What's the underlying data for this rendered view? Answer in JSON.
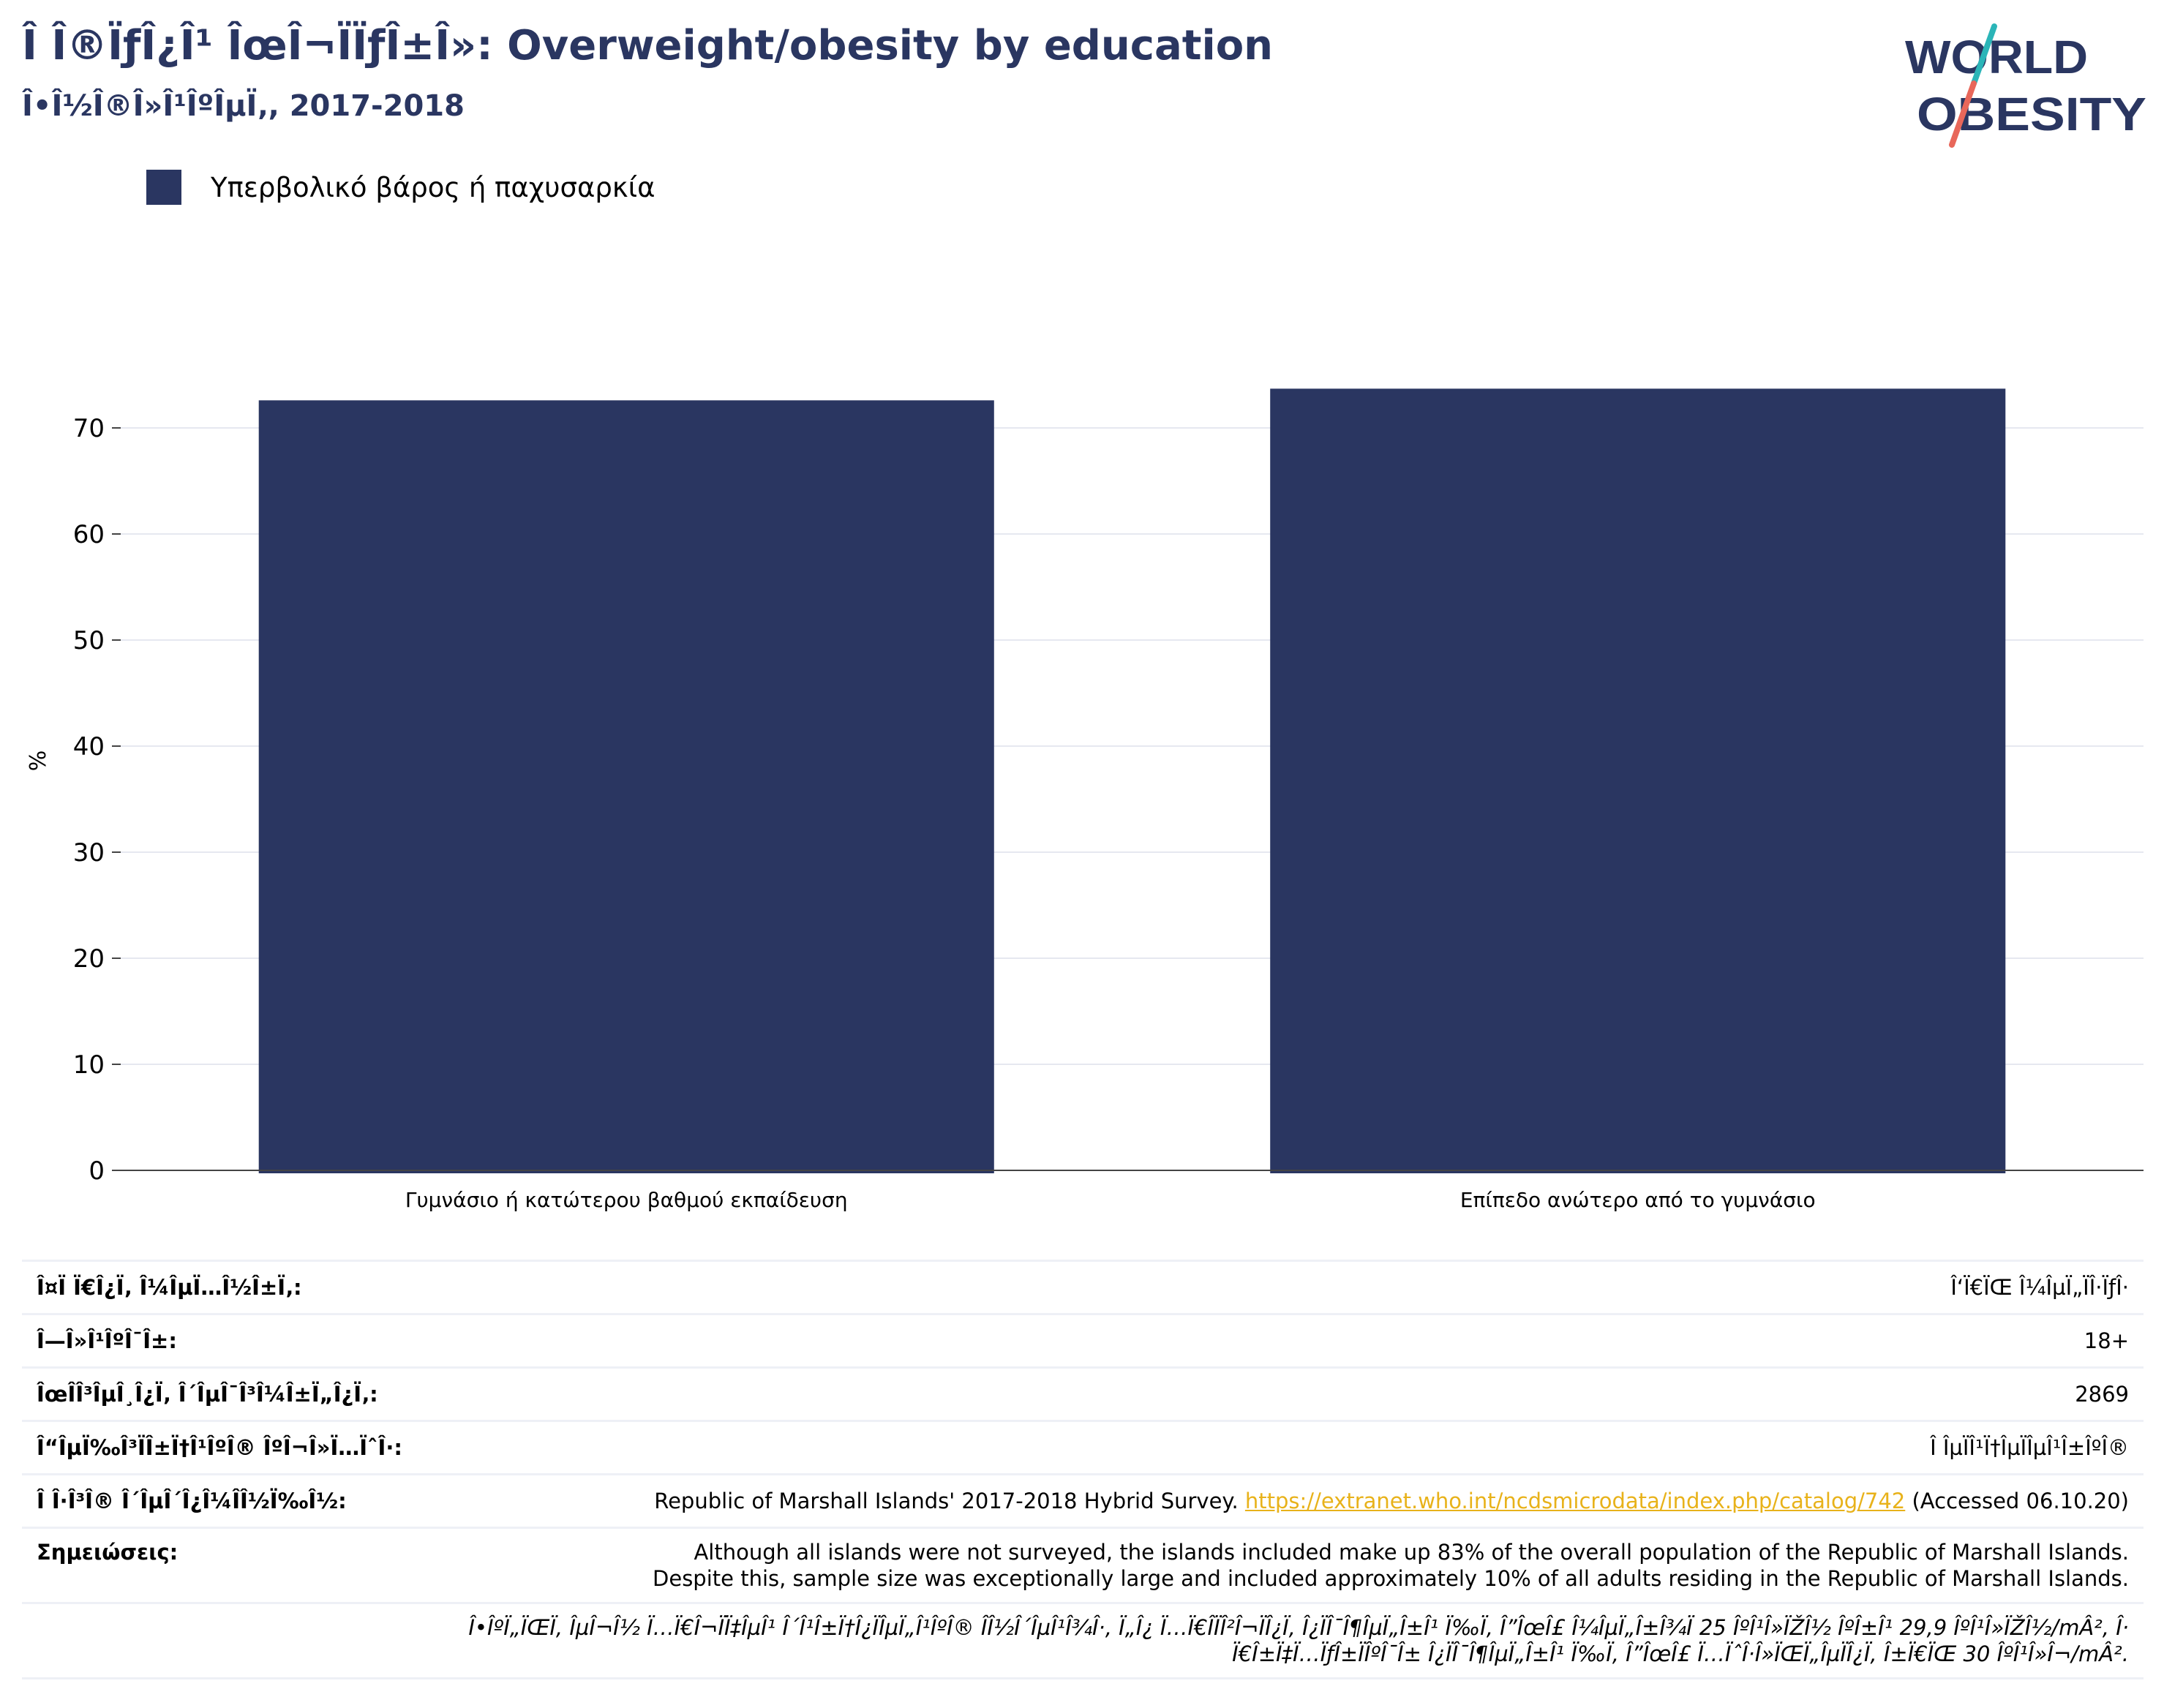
{
  "header": {
    "title": "Î Î®ÏƒÎ¿Î¹ ÎœÎ¬ÏÏƒÎ±Î»: Overweight/obesity by education",
    "subtitle": "Î•Î½Î®Î»Î¹ÎºÎµÏ‚, 2017-2018"
  },
  "logo": {
    "line1": "WORLD",
    "line2": "OBESITY"
  },
  "colors": {
    "bar": "#2a3661",
    "brand": "#2a3661",
    "link": "#e8b21a",
    "grid": "#e6e8f0",
    "logo_teal": "#2bb5b8",
    "logo_coral": "#e8675a"
  },
  "chart_data": {
    "type": "bar",
    "categories": [
      "Γυμνάσιο ή κατώτερου βαθμού εκπαίδευση",
      "Επίπεδο ανώτερο από το γυμνάσιο"
    ],
    "series": [
      {
        "name": "Υπερβολικό βάρος ή παχυσαρκία",
        "values": [
          72.6,
          73.7
        ]
      }
    ],
    "ylabel": "%",
    "ylim": [
      0,
      80
    ],
    "yticks": [
      0,
      10,
      20,
      30,
      40,
      50,
      60,
      70
    ],
    "grid": true,
    "legend_position": "top-left"
  },
  "info": {
    "rows": [
      {
        "label": "Î¤Ï Ï€Î¿Ï‚ Î¼ÎµÏ…Î½Î±Ï‚:",
        "value": "Î‘Ï€ÏŒ Î¼ÎµÏ„ÏÎ·ÏƒÎ·"
      },
      {
        "label": "Î—Î»Î¹ÎºÎ¯Î±:",
        "value": "18+"
      },
      {
        "label": "ÎœÎ­Î³ÎµÎ¸Î¿Ï‚ Î´ÎµÎ¯Î³Î¼Î±Ï„Î¿Ï‚:",
        "value": "2869"
      },
      {
        "label": "Î“ÎµÏ‰Î³ÏÎ±Ï†Î¹ÎºÎ® ÎºÎ¬Î»Ï…ÏˆÎ·:",
        "value": "Î ÎµÏÎ¹Ï†ÎµÏÎµÎ¹Î±ÎºÎ®"
      }
    ],
    "source_label": "Î Î·Î³Î® Î´ÎµÎ´Î¿Î¼Î­Î½Ï‰Î½:",
    "source_prefix": "Republic of Marshall Islands' 2017-2018 Hybrid Survey.",
    "source_url": "https://extranet.who.int/ncdsmicrodata/index.php/catalog/742",
    "source_suffix": "(Accessed 06.10.20)",
    "notes_label": "Σημειώσεις:",
    "notes_line1": "Although all islands were not surveyed, the islands included make up 83% of the overall population of the Republic of Marshall Islands.",
    "notes_line2": "Despite this, sample size was exceptionally large and included approximately 10% of all adults residing in the Republic of Marshall Islands.",
    "footnote_line1": "Î•ÎºÏ„ÏŒÏ‚ ÎµÎ¬Î½ Ï…Ï€Î¬ÏÏ‡ÎµÎ¹ Î´Î¹Î±Ï†Î¿ÏÎµÏ„Î¹ÎºÎ® Î­Î½Î´ÎµÎ¹Î¾Î·, Ï„Î¿ Ï…Ï€Î­ÏÎ²Î¬ÏÎ¿Ï‚ Î¿ÏÎ¯Î¶ÎµÏ„Î±Î¹ Ï‰Ï‚ Î”ÎœÎ£ Î¼ÎµÏ„Î±Î¾Ï 25 ÎºÎ¹Î»ÏŽÎ½ ÎºÎ±Î¹ 29,9 ÎºÎ¹Î»ÏŽÎ½/mÂ², Î·",
    "footnote_line2": "Ï€Î±Ï‡Ï…ÏƒÎ±ÏÎºÎ¯Î± Î¿ÏÎ¯Î¶ÎµÏ„Î±Î¹ Ï‰Ï‚ Î”ÎœÎ£ Ï…ÏˆÎ·Î»ÏŒÏ„ÎµÏÎ¿Ï‚ Î±Ï€ÏŒ 30 ÎºÎ¹Î»Î¬/mÂ²."
  }
}
